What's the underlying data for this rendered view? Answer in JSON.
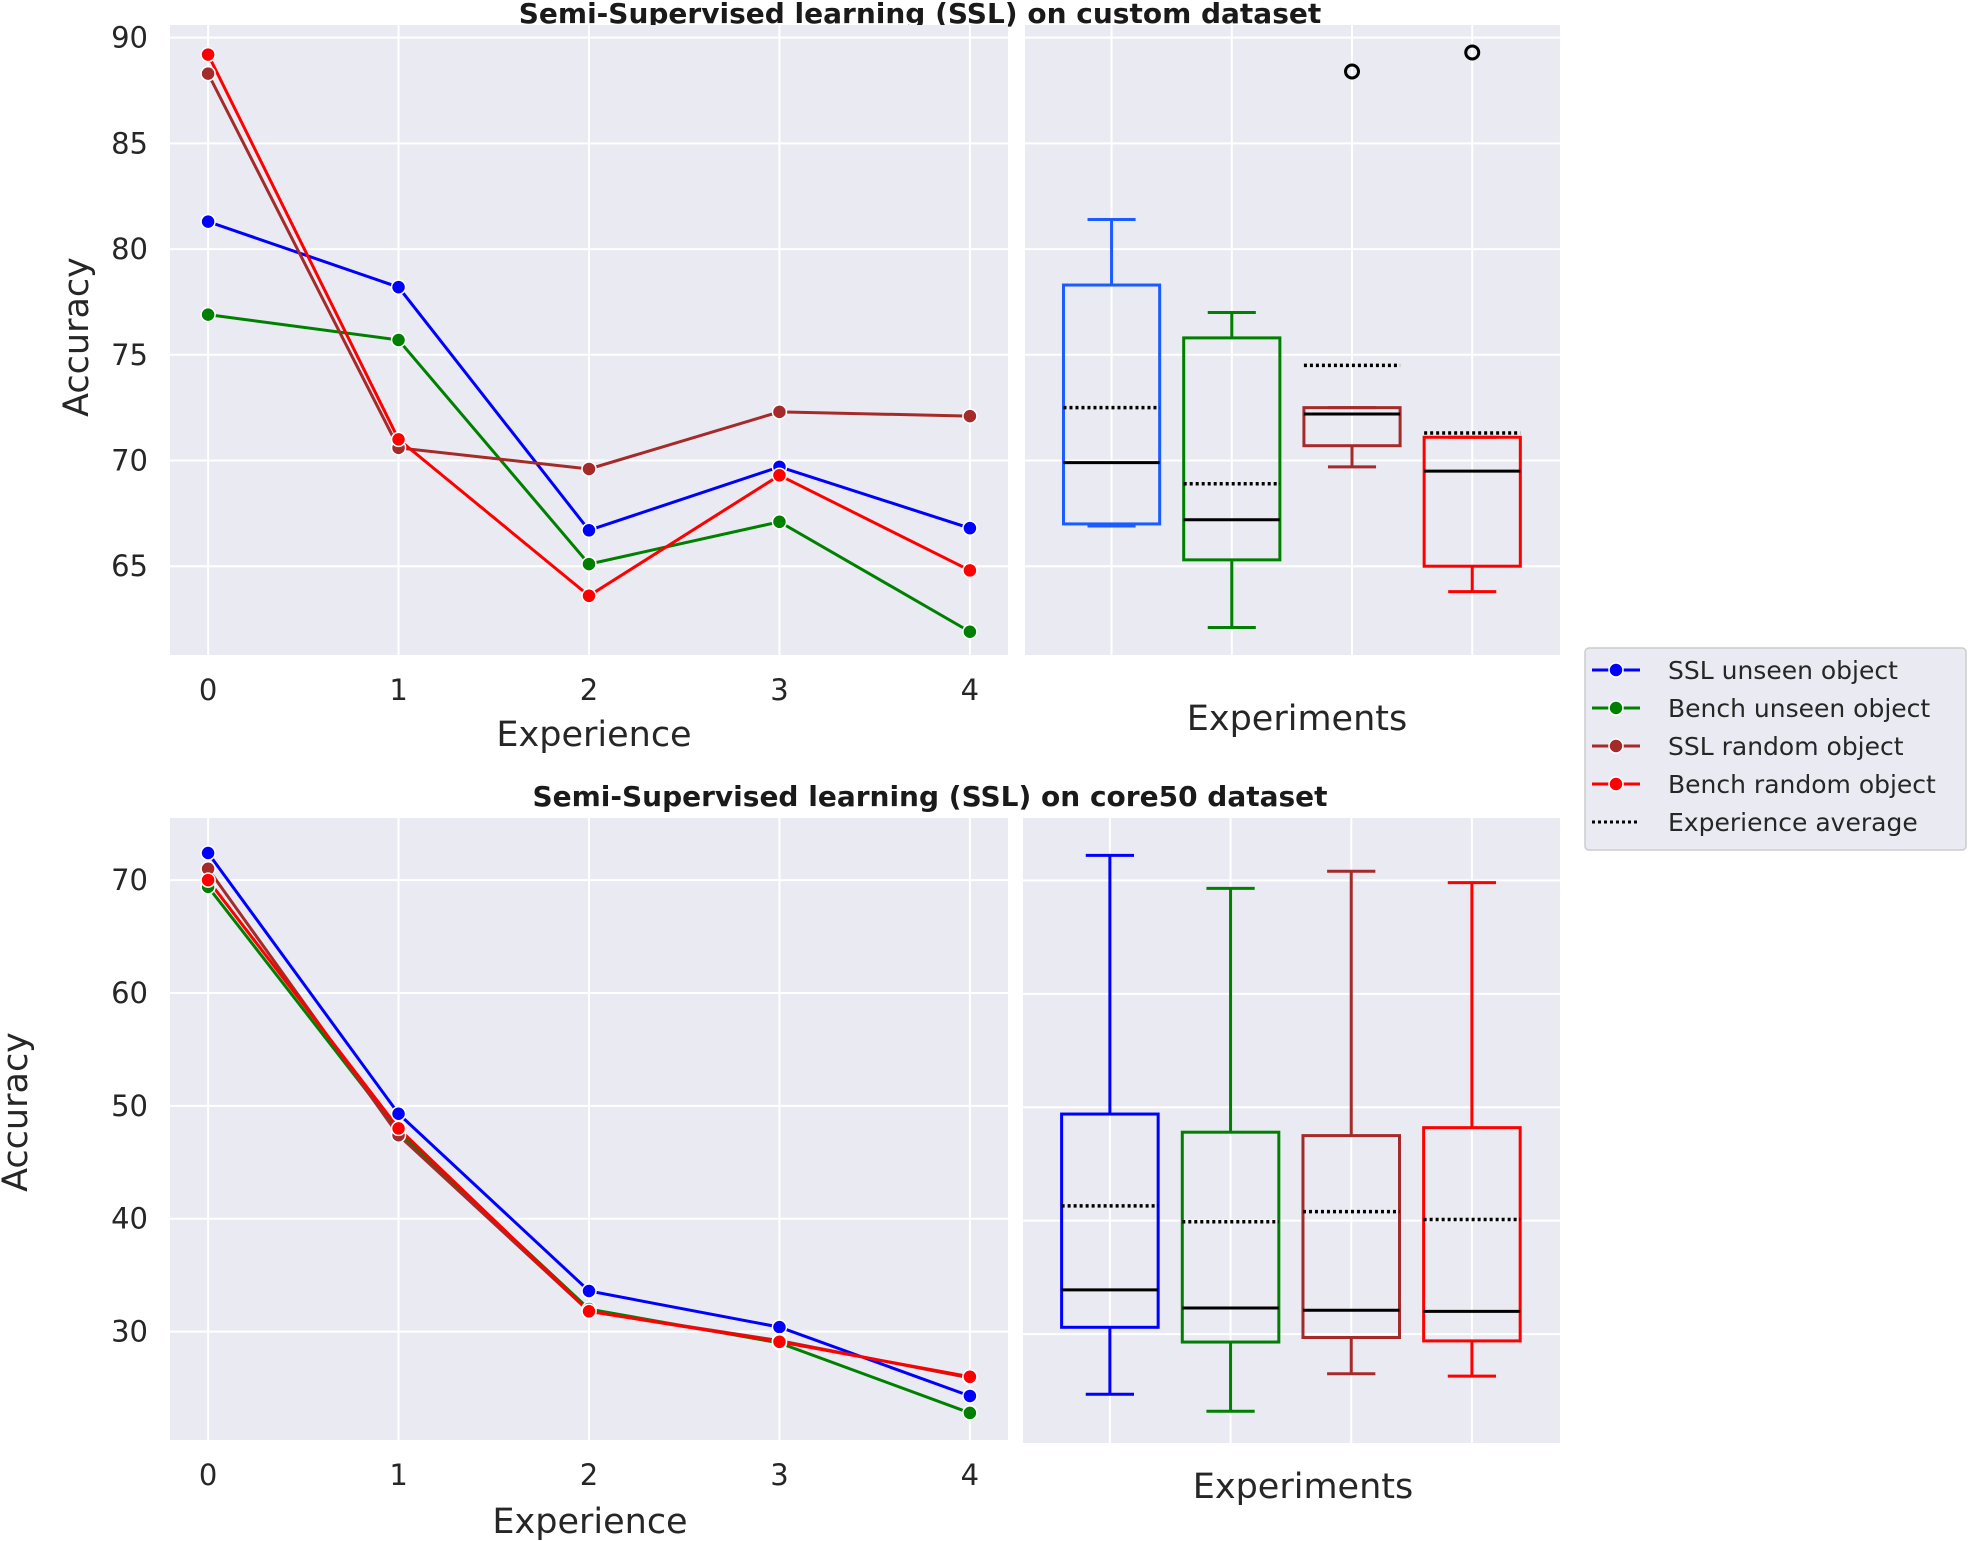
{
  "chart_data": [
    {
      "type": "line",
      "title": "Semi-Supervised learning (SSL) on custom dataset",
      "xlabel": "Experience",
      "ylabel": "Accuracy",
      "x": [
        0,
        1,
        2,
        3,
        4
      ],
      "xticks": [
        "0",
        "1",
        "2",
        "3",
        "4"
      ],
      "yticks": [
        "65",
        "70",
        "75",
        "80",
        "85",
        "90"
      ],
      "ylim": [
        60.8,
        90.6
      ],
      "grid": true,
      "series": [
        {
          "name": "SSL unseen object",
          "color": "#0000ff",
          "values": [
            81.3,
            78.2,
            66.7,
            69.7,
            66.8
          ]
        },
        {
          "name": "Bench unseen object",
          "color": "#008000",
          "values": [
            76.9,
            75.7,
            65.1,
            67.1,
            61.9
          ]
        },
        {
          "name": "SSL random object",
          "color": "#a52a2a",
          "values": [
            88.3,
            70.6,
            69.6,
            72.3,
            72.1
          ]
        },
        {
          "name": "Bench random object",
          "color": "#ff0000",
          "values": [
            89.2,
            71.0,
            63.6,
            69.3,
            64.8
          ]
        }
      ]
    },
    {
      "type": "box",
      "xlabel": "Experiments",
      "ylim": [
        60.8,
        90.6
      ],
      "grid": true,
      "boxes": [
        {
          "name": "SSL unseen object",
          "color": "#1a5cff",
          "whislo": 66.9,
          "q1": 67.0,
          "median": 69.9,
          "q3": 78.3,
          "whishi": 81.4,
          "mean": 72.5,
          "fliers": []
        },
        {
          "name": "Bench unseen object",
          "color": "#008000",
          "whislo": 62.1,
          "q1": 65.3,
          "median": 67.2,
          "q3": 75.8,
          "whishi": 77.0,
          "mean": 68.9,
          "fliers": []
        },
        {
          "name": "SSL random object",
          "color": "#a52a2a",
          "whislo": 69.7,
          "q1": 70.7,
          "median": 72.2,
          "q3": 72.5,
          "whishi": 72.5,
          "mean": 74.5,
          "fliers": [
            88.4
          ]
        },
        {
          "name": "Bench random object",
          "color": "#ff0000",
          "whislo": 63.8,
          "q1": 65.0,
          "median": 69.5,
          "q3": 71.1,
          "whishi": 71.1,
          "mean": 71.3,
          "fliers": [
            89.3
          ]
        }
      ]
    },
    {
      "type": "line",
      "title": "Semi-Supervised learning (SSL) on core50 dataset",
      "xlabel": "Experience",
      "ylabel": "Accuracy",
      "x": [
        0,
        1,
        2,
        3,
        4
      ],
      "xticks": [
        "0",
        "1",
        "2",
        "3",
        "4"
      ],
      "yticks": [
        "30",
        "40",
        "50",
        "60",
        "70"
      ],
      "ylim": [
        20.4,
        75.5
      ],
      "grid": true,
      "series": [
        {
          "name": "SSL unseen object",
          "color": "#0000ff",
          "values": [
            72.4,
            49.3,
            33.6,
            30.4,
            24.3
          ]
        },
        {
          "name": "Bench unseen object",
          "color": "#008000",
          "values": [
            69.4,
            47.7,
            32.0,
            29.0,
            22.8
          ]
        },
        {
          "name": "SSL random object",
          "color": "#a52a2a",
          "values": [
            71.0,
            47.4,
            31.8,
            29.2,
            25.9
          ]
        },
        {
          "name": "Bench random object",
          "color": "#ff0000",
          "values": [
            70.0,
            48.0,
            31.8,
            29.1,
            26.0
          ]
        }
      ]
    },
    {
      "type": "box",
      "xlabel": "Experiments",
      "ylim": [
        20.4,
        75.5
      ],
      "grid": true,
      "boxes": [
        {
          "name": "SSL unseen object",
          "color": "#0000ff",
          "whislo": 24.7,
          "q1": 30.6,
          "median": 33.9,
          "q3": 49.4,
          "whishi": 72.2,
          "mean": 41.3,
          "fliers": []
        },
        {
          "name": "Bench unseen object",
          "color": "#008000",
          "whislo": 23.2,
          "q1": 29.3,
          "median": 32.3,
          "q3": 47.8,
          "whishi": 69.3,
          "mean": 39.9,
          "fliers": []
        },
        {
          "name": "SSL random object",
          "color": "#a52a2a",
          "whislo": 26.5,
          "q1": 29.7,
          "median": 32.1,
          "q3": 47.5,
          "whishi": 70.8,
          "mean": 40.8,
          "fliers": []
        },
        {
          "name": "Bench random object",
          "color": "#ff0000",
          "whislo": 26.3,
          "q1": 29.4,
          "median": 32.0,
          "q3": 48.2,
          "whishi": 69.8,
          "mean": 40.1,
          "fliers": []
        }
      ]
    }
  ],
  "legend": {
    "location": "right-center",
    "entries": [
      {
        "label": "SSL unseen object",
        "color": "#0000ff",
        "style": "line-marker"
      },
      {
        "label": "Bench unseen object",
        "color": "#008000",
        "style": "line-marker"
      },
      {
        "label": "SSL random object",
        "color": "#a52a2a",
        "style": "line-marker"
      },
      {
        "label": "Bench random object",
        "color": "#ff0000",
        "style": "line-marker"
      },
      {
        "label": "Experience average",
        "color": "#000000",
        "style": "dotted"
      }
    ]
  }
}
